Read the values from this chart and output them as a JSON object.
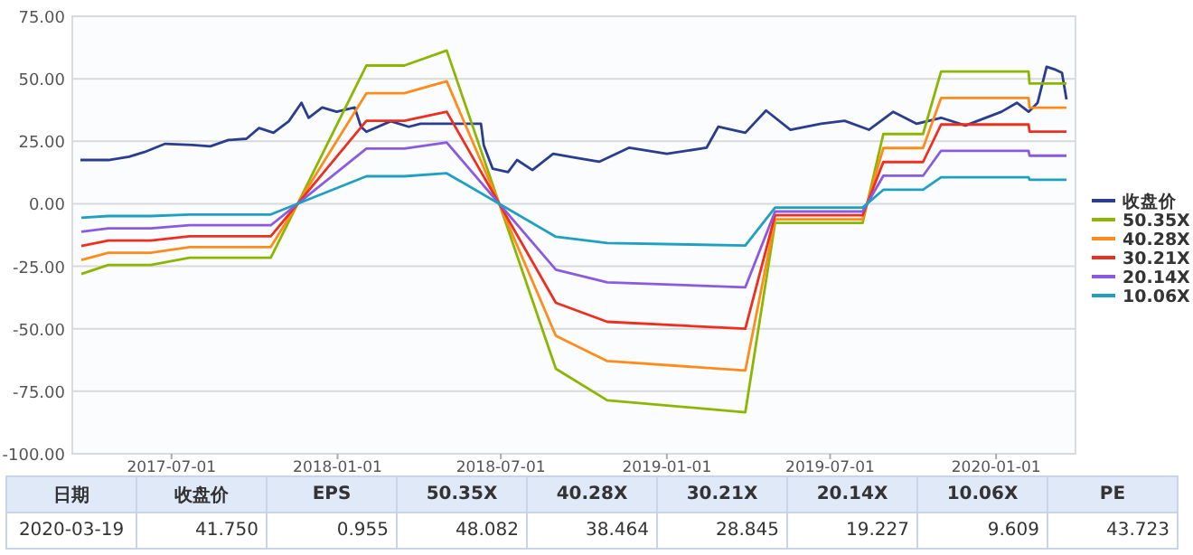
{
  "chart_data": {
    "type": "line",
    "x": [
      "2017-03-23",
      "2017-04-22",
      "2017-06-08",
      "2017-07-21",
      "2017-10-19",
      "2018-02-02",
      "2018-03-16",
      "2018-05-02",
      "2018-08-31",
      "2018-10-27",
      "2019-03-29",
      "2019-05-01",
      "2019-08-06",
      "2019-08-29",
      "2019-10-12",
      "2019-11-01",
      "2020-02-06",
      "2020-02-07",
      "2020-03-19"
    ],
    "series": [
      {
        "name": "收盘价",
        "color": "#2b3d8f",
        "x": [
          "2017-03-22",
          "2017-04-22",
          "2017-05-15",
          "2017-06-01",
          "2017-06-24",
          "2017-07-24",
          "2017-08-13",
          "2017-09-02",
          "2017-09-22",
          "2017-10-06",
          "2017-10-22",
          "2017-11-08",
          "2017-11-22",
          "2017-11-30",
          "2017-12-15",
          "2017-12-31",
          "2018-01-20",
          "2018-01-27",
          "2018-02-02",
          "2018-03-01",
          "2018-03-21",
          "2018-04-03",
          "2018-05-06",
          "2018-06-09",
          "2018-06-12",
          "2018-06-22",
          "2018-07-09",
          "2018-07-19",
          "2018-08-05",
          "2018-08-28",
          "2018-09-24",
          "2018-10-18",
          "2018-11-20",
          "2019-01-01",
          "2019-02-14",
          "2019-02-27",
          "2019-03-29",
          "2019-04-21",
          "2019-05-18",
          "2019-06-21",
          "2019-07-17",
          "2019-08-13",
          "2019-09-09",
          "2019-10-05",
          "2019-11-01",
          "2019-11-28",
          "2020-01-07",
          "2020-01-24",
          "2020-02-06",
          "2020-02-16",
          "2020-02-26",
          "2020-03-07",
          "2020-03-14",
          "2020-03-19"
        ],
        "values": [
          17.5,
          17.5,
          18.8,
          20.7,
          24,
          23.5,
          23,
          25.5,
          26,
          30.3,
          28.4,
          33,
          40.4,
          34.4,
          38.5,
          36.8,
          38.5,
          30.8,
          28.8,
          33,
          30.8,
          32,
          32,
          32,
          23.5,
          14,
          12.7,
          17.5,
          13.5,
          20,
          18.3,
          16.8,
          22.4,
          20,
          22.4,
          30.8,
          28.4,
          37.3,
          29.6,
          32,
          33.2,
          29.6,
          36.8,
          32,
          34.4,
          31.3,
          36.8,
          40.4,
          36.8,
          40.4,
          54.8,
          53.6,
          52.4,
          41.75
        ]
      },
      {
        "name": "50.35X",
        "color": "#8db600",
        "values": [
          -28.1,
          -24.5,
          -24.5,
          -21.6,
          -21.6,
          55.3,
          55.3,
          61.3,
          -66,
          -78.6,
          -83.4,
          -7.7,
          -7.7,
          27.9,
          27.9,
          52.9,
          52.9,
          48.082,
          48.082
        ]
      },
      {
        "name": "40.28X",
        "color": "#ff8c1a",
        "values": [
          -22.5,
          -19.6,
          -19.6,
          -17.3,
          -17.3,
          44.2,
          44.2,
          49.0,
          -52.8,
          -62.9,
          -66.7,
          -6.2,
          -6.2,
          22.3,
          22.3,
          42.3,
          42.3,
          38.464,
          38.464
        ]
      },
      {
        "name": "30.21X",
        "color": "#ee2e1e",
        "values": [
          -16.9,
          -14.7,
          -14.7,
          -13.0,
          -13.0,
          33.2,
          33.2,
          36.8,
          -39.6,
          -47.2,
          -50.0,
          -4.6,
          -4.6,
          16.7,
          16.7,
          31.7,
          31.7,
          28.845,
          28.845
        ]
      },
      {
        "name": "20.14X",
        "color": "#8a5ae0",
        "values": [
          -11.2,
          -9.8,
          -9.8,
          -8.6,
          -8.6,
          22.1,
          22.1,
          24.5,
          -26.4,
          -31.4,
          -33.4,
          -3.1,
          -3.1,
          11.2,
          11.2,
          21.2,
          21.2,
          19.227,
          19.227
        ]
      },
      {
        "name": "10.06X",
        "color": "#1fa0c0",
        "values": [
          -5.6,
          -4.9,
          -4.9,
          -4.3,
          -4.3,
          11.0,
          11.0,
          12.2,
          -13.2,
          -15.7,
          -16.7,
          -1.5,
          -1.5,
          5.6,
          5.6,
          10.6,
          10.6,
          9.609,
          9.609
        ]
      }
    ],
    "xlim": [
      "2017-03-13",
      "2020-03-29"
    ],
    "xticks": [
      "2017-07-01",
      "2018-01-01",
      "2018-07-01",
      "2019-01-01",
      "2019-07-01",
      "2020-01-01"
    ],
    "ylim": [
      -100,
      75
    ],
    "yticks": [
      {
        "value": -100,
        "label": "-100.00"
      },
      {
        "value": -75,
        "label": "-75.00"
      },
      {
        "value": -50,
        "label": "-50.00"
      },
      {
        "value": -25,
        "label": "-25.00"
      },
      {
        "value": 0,
        "label": "0.00"
      },
      {
        "value": 25,
        "label": "25.00"
      },
      {
        "value": 50,
        "label": "50.00"
      },
      {
        "value": 75,
        "label": "75.00"
      }
    ],
    "grid": "y",
    "legend": "right",
    "annotations": [
      "日期",
      "收盘价",
      "EPS",
      "50.35X",
      "40.28X",
      "30.21X",
      "20.14X",
      "10.06X",
      "PE",
      "2020-03-19",
      "41.750",
      "0.955",
      "48.082",
      "38.464",
      "28.845",
      "19.227",
      "9.609",
      "43.723"
    ]
  }
}
